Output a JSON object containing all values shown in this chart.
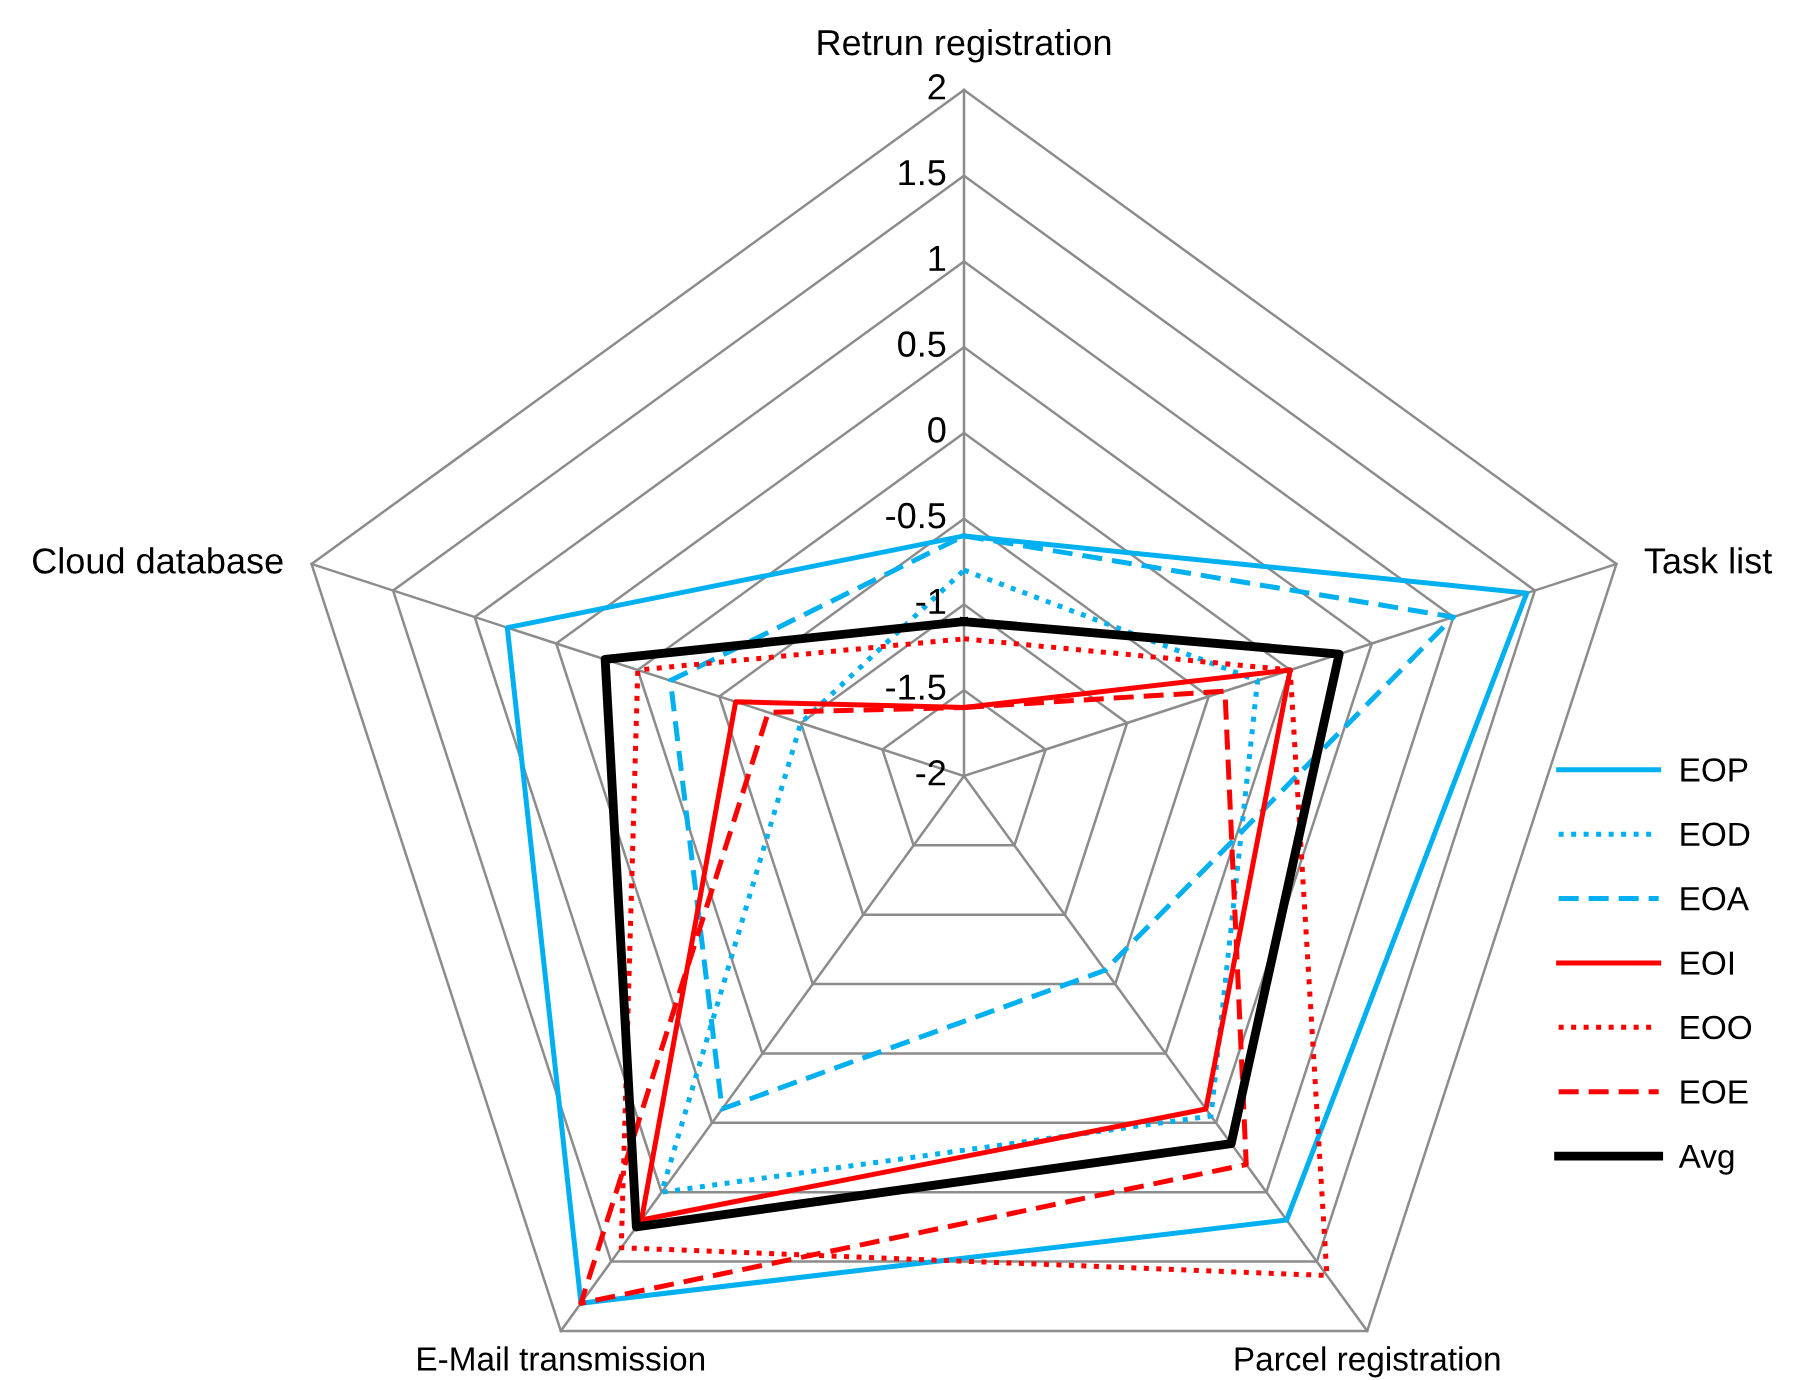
{
  "chart_data": {
    "type": "radar",
    "categories": [
      "Retrun registration",
      "Task list",
      "Parcel registration",
      "E-Mail transmission",
      "Cloud database"
    ],
    "ylim": [
      -2,
      2
    ],
    "yticks": [
      -2,
      -1.5,
      -1,
      -0.5,
      0,
      0.5,
      1,
      1.5,
      2
    ],
    "legend": "right",
    "grid": true,
    "series": [
      {
        "name": "EOP",
        "color": "#00b0f0",
        "line_style": "solid",
        "values": [
          -0.6,
          1.45,
          1.2,
          1.8,
          0.8
        ]
      },
      {
        "name": "EOD",
        "color": "#00b0f0",
        "line_style": "dotted",
        "values": [
          -0.8,
          -0.2,
          0.45,
          1.0,
          -1.0
        ]
      },
      {
        "name": "EOA",
        "color": "#00b0f0",
        "line_style": "dashed",
        "values": [
          -0.6,
          1.0,
          -0.6,
          0.4,
          -0.2
        ]
      },
      {
        "name": "EOI",
        "color": "#ff0000",
        "line_style": "solid",
        "values": [
          -1.6,
          0.0,
          0.4,
          1.2,
          -0.6
        ]
      },
      {
        "name": "EOO",
        "color": "#ff0000",
        "line_style": "dotted",
        "values": [
          -1.2,
          0.0,
          1.6,
          1.4,
          0.0
        ]
      },
      {
        "name": "EOE",
        "color": "#ff0000",
        "line_style": "dashed",
        "values": [
          -1.6,
          -0.4,
          0.8,
          1.8,
          -0.8
        ]
      },
      {
        "name": "Avg",
        "color": "#000000",
        "line_style": "solid",
        "values": [
          -1.1,
          0.3,
          0.65,
          1.25,
          0.2
        ]
      }
    ]
  }
}
